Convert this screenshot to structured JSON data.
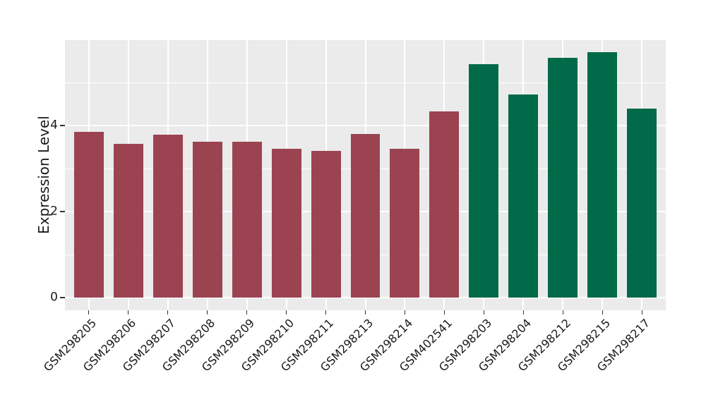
{
  "figure": {
    "background": "#ffffff",
    "panel_background": "#EBEBEB",
    "grid_color": "#FFFFFF",
    "tick_color": "#333333",
    "text_color": "#1a1a1a"
  },
  "chart_data": {
    "type": "bar",
    "title": "",
    "xlabel": "",
    "ylabel": "Expression Level",
    "categories": [
      "GSM298205",
      "GSM298206",
      "GSM298207",
      "GSM298208",
      "GSM298209",
      "GSM298210",
      "GSM298211",
      "GSM298213",
      "GSM298214",
      "GSM402541",
      "GSM298203",
      "GSM298204",
      "GSM298212",
      "GSM298215",
      "GSM298217"
    ],
    "values": [
      3.86,
      3.58,
      3.79,
      3.63,
      3.63,
      3.46,
      3.41,
      3.8,
      3.46,
      4.33,
      5.43,
      4.73,
      5.58,
      5.7,
      4.39
    ],
    "groups": [
      0,
      0,
      0,
      0,
      0,
      0,
      0,
      0,
      0,
      0,
      1,
      1,
      1,
      1,
      1
    ],
    "group_colors": [
      "#9B4351",
      "#016A49"
    ],
    "yticks": [
      0,
      2,
      4
    ],
    "ytick_labels": [
      "0",
      "2",
      "4"
    ],
    "yticks_minor": [
      1,
      3,
      5
    ],
    "ylim": [
      -0.295,
      5.985
    ],
    "x_edge_padding": 0.6,
    "bar_width": 0.75,
    "grid": true,
    "legend": false,
    "x_label_angle_deg": 45
  }
}
